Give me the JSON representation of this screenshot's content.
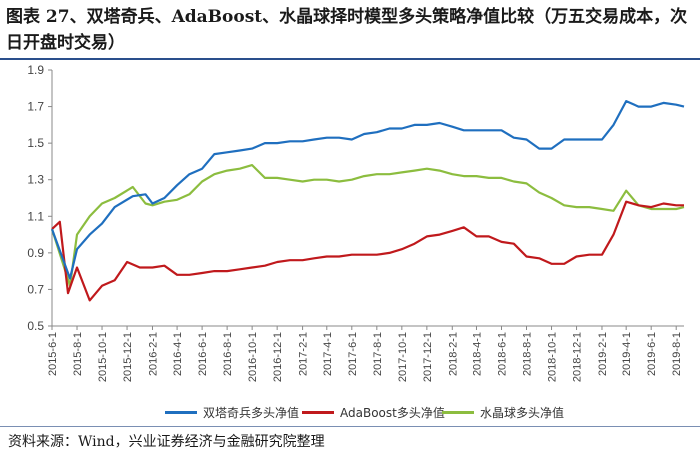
{
  "title": "图表 27、双塔奇兵、AdaBoost、水晶球择时模型多头策略净值比较（万五交易成本，次日开盘时交易）",
  "source": "资料来源：Wind，兴业证券经济与金融研究院整理",
  "colors": {
    "twin_towers": "#1f6fbf",
    "adaboost": "#c0191c",
    "crystal_ball": "#8cbd3f",
    "axis": "#888888",
    "rule": "#2a4f8c"
  },
  "chart_data": {
    "type": "line",
    "title": "",
    "xlabel": "",
    "ylabel": "",
    "ylim": [
      0.5,
      1.9
    ],
    "y_ticks": [
      "1.9",
      "1.7",
      "1.5",
      "1.3",
      "1.1",
      "0.9",
      "0.7",
      "0.5"
    ],
    "y_tick_values": [
      1.9,
      1.7,
      1.5,
      1.3,
      1.1,
      0.9,
      0.7,
      0.5
    ],
    "x_ticks": [
      "2015-6-1",
      "2015-8-1",
      "2015-10-1",
      "2015-12-1",
      "2016-2-1",
      "2016-4-1",
      "2016-6-1",
      "2016-8-1",
      "2016-10-1",
      "2016-12-1",
      "2017-2-1",
      "2017-4-1",
      "2017-6-1",
      "2017-8-1",
      "2017-10-1",
      "2017-12-1",
      "2018-2-1",
      "2018-4-1",
      "2018-6-1",
      "2018-8-1",
      "2018-10-1",
      "2018-12-1",
      "2019-2-1",
      "2019-4-1",
      "2019-6-1",
      "2019-8-1"
    ],
    "grid": false,
    "legend_position": "bottom",
    "series": [
      {
        "name": "双塔奇兵多头净值",
        "x": [
          "2015-6-1",
          "2015-7-15",
          "2015-8-1",
          "2015-9-1",
          "2015-10-1",
          "2015-11-1",
          "2015-12-15",
          "2016-1-15",
          "2016-2-1",
          "2016-3-1",
          "2016-4-1",
          "2016-5-1",
          "2016-6-1",
          "2016-7-1",
          "2016-8-1",
          "2016-9-1",
          "2016-10-1",
          "2016-11-1",
          "2016-12-1",
          "2017-1-1",
          "2017-2-1",
          "2017-3-1",
          "2017-4-1",
          "2017-5-1",
          "2017-6-1",
          "2017-7-1",
          "2017-8-1",
          "2017-9-1",
          "2017-10-1",
          "2017-11-1",
          "2017-12-1",
          "2018-1-1",
          "2018-2-1",
          "2018-3-1",
          "2018-4-1",
          "2018-5-1",
          "2018-6-1",
          "2018-7-1",
          "2018-8-1",
          "2018-9-1",
          "2018-10-1",
          "2018-11-1",
          "2018-12-1",
          "2019-1-1",
          "2019-2-1",
          "2019-3-1",
          "2019-4-1",
          "2019-5-1",
          "2019-6-1",
          "2019-7-1",
          "2019-8-1",
          "2019-8-20"
        ],
        "values": [
          1.03,
          0.76,
          0.92,
          1.0,
          1.06,
          1.15,
          1.21,
          1.22,
          1.17,
          1.2,
          1.27,
          1.33,
          1.36,
          1.44,
          1.45,
          1.46,
          1.47,
          1.5,
          1.5,
          1.51,
          1.51,
          1.52,
          1.53,
          1.53,
          1.52,
          1.55,
          1.56,
          1.58,
          1.58,
          1.6,
          1.6,
          1.61,
          1.59,
          1.57,
          1.57,
          1.57,
          1.57,
          1.53,
          1.52,
          1.47,
          1.47,
          1.52,
          1.52,
          1.52,
          1.52,
          1.6,
          1.73,
          1.7,
          1.7,
          1.72,
          1.71,
          1.7
        ]
      },
      {
        "name": "AdaBoost多头净值",
        "x": [
          "2015-6-1",
          "2015-6-20",
          "2015-7-10",
          "2015-8-1",
          "2015-9-1",
          "2015-10-1",
          "2015-11-1",
          "2015-12-1",
          "2016-1-1",
          "2016-2-1",
          "2016-3-1",
          "2016-4-1",
          "2016-5-1",
          "2016-6-1",
          "2016-7-1",
          "2016-8-1",
          "2016-9-1",
          "2016-10-1",
          "2016-11-1",
          "2016-12-1",
          "2017-1-1",
          "2017-2-1",
          "2017-3-1",
          "2017-4-1",
          "2017-5-1",
          "2017-6-1",
          "2017-7-1",
          "2017-8-1",
          "2017-9-1",
          "2017-10-1",
          "2017-11-1",
          "2017-12-1",
          "2018-1-1",
          "2018-2-1",
          "2018-3-1",
          "2018-4-1",
          "2018-5-1",
          "2018-6-1",
          "2018-7-1",
          "2018-8-1",
          "2018-9-1",
          "2018-10-1",
          "2018-11-1",
          "2018-12-1",
          "2019-1-1",
          "2019-2-1",
          "2019-3-1",
          "2019-4-1",
          "2019-5-1",
          "2019-6-1",
          "2019-7-1",
          "2019-8-1",
          "2019-8-20"
        ],
        "values": [
          1.03,
          1.07,
          0.68,
          0.82,
          0.64,
          0.72,
          0.75,
          0.85,
          0.82,
          0.82,
          0.83,
          0.78,
          0.78,
          0.79,
          0.8,
          0.8,
          0.81,
          0.82,
          0.83,
          0.85,
          0.86,
          0.86,
          0.87,
          0.88,
          0.88,
          0.89,
          0.89,
          0.89,
          0.9,
          0.92,
          0.95,
          0.99,
          1.0,
          1.02,
          1.04,
          0.99,
          0.99,
          0.96,
          0.95,
          0.88,
          0.87,
          0.84,
          0.84,
          0.88,
          0.89,
          0.89,
          1.0,
          1.18,
          1.16,
          1.15,
          1.17,
          1.16,
          1.16
        ]
      },
      {
        "name": "水晶球多头净值",
        "x": [
          "2015-6-1",
          "2015-7-15",
          "2015-8-1",
          "2015-9-1",
          "2015-10-1",
          "2015-11-1",
          "2015-12-15",
          "2016-1-15",
          "2016-2-1",
          "2016-3-1",
          "2016-4-1",
          "2016-5-1",
          "2016-6-1",
          "2016-7-1",
          "2016-8-1",
          "2016-9-1",
          "2016-10-1",
          "2016-11-1",
          "2016-12-1",
          "2017-1-1",
          "2017-2-1",
          "2017-3-1",
          "2017-4-1",
          "2017-5-1",
          "2017-6-1",
          "2017-7-1",
          "2017-8-1",
          "2017-9-1",
          "2017-10-1",
          "2017-11-1",
          "2017-12-1",
          "2018-1-1",
          "2018-2-1",
          "2018-3-1",
          "2018-4-1",
          "2018-5-1",
          "2018-6-1",
          "2018-7-1",
          "2018-8-1",
          "2018-9-1",
          "2018-10-1",
          "2018-11-1",
          "2018-12-1",
          "2019-1-1",
          "2019-2-1",
          "2019-3-1",
          "2019-4-1",
          "2019-5-1",
          "2019-6-1",
          "2019-7-1",
          "2019-8-1",
          "2019-8-20"
        ],
        "values": [
          1.03,
          0.72,
          1.0,
          1.1,
          1.17,
          1.2,
          1.26,
          1.17,
          1.16,
          1.18,
          1.19,
          1.22,
          1.29,
          1.33,
          1.35,
          1.36,
          1.38,
          1.31,
          1.31,
          1.3,
          1.29,
          1.3,
          1.3,
          1.29,
          1.3,
          1.32,
          1.33,
          1.33,
          1.34,
          1.35,
          1.36,
          1.35,
          1.33,
          1.32,
          1.32,
          1.31,
          1.31,
          1.29,
          1.28,
          1.23,
          1.2,
          1.16,
          1.15,
          1.15,
          1.14,
          1.13,
          1.24,
          1.16,
          1.14,
          1.14,
          1.14,
          1.15
        ]
      }
    ]
  }
}
